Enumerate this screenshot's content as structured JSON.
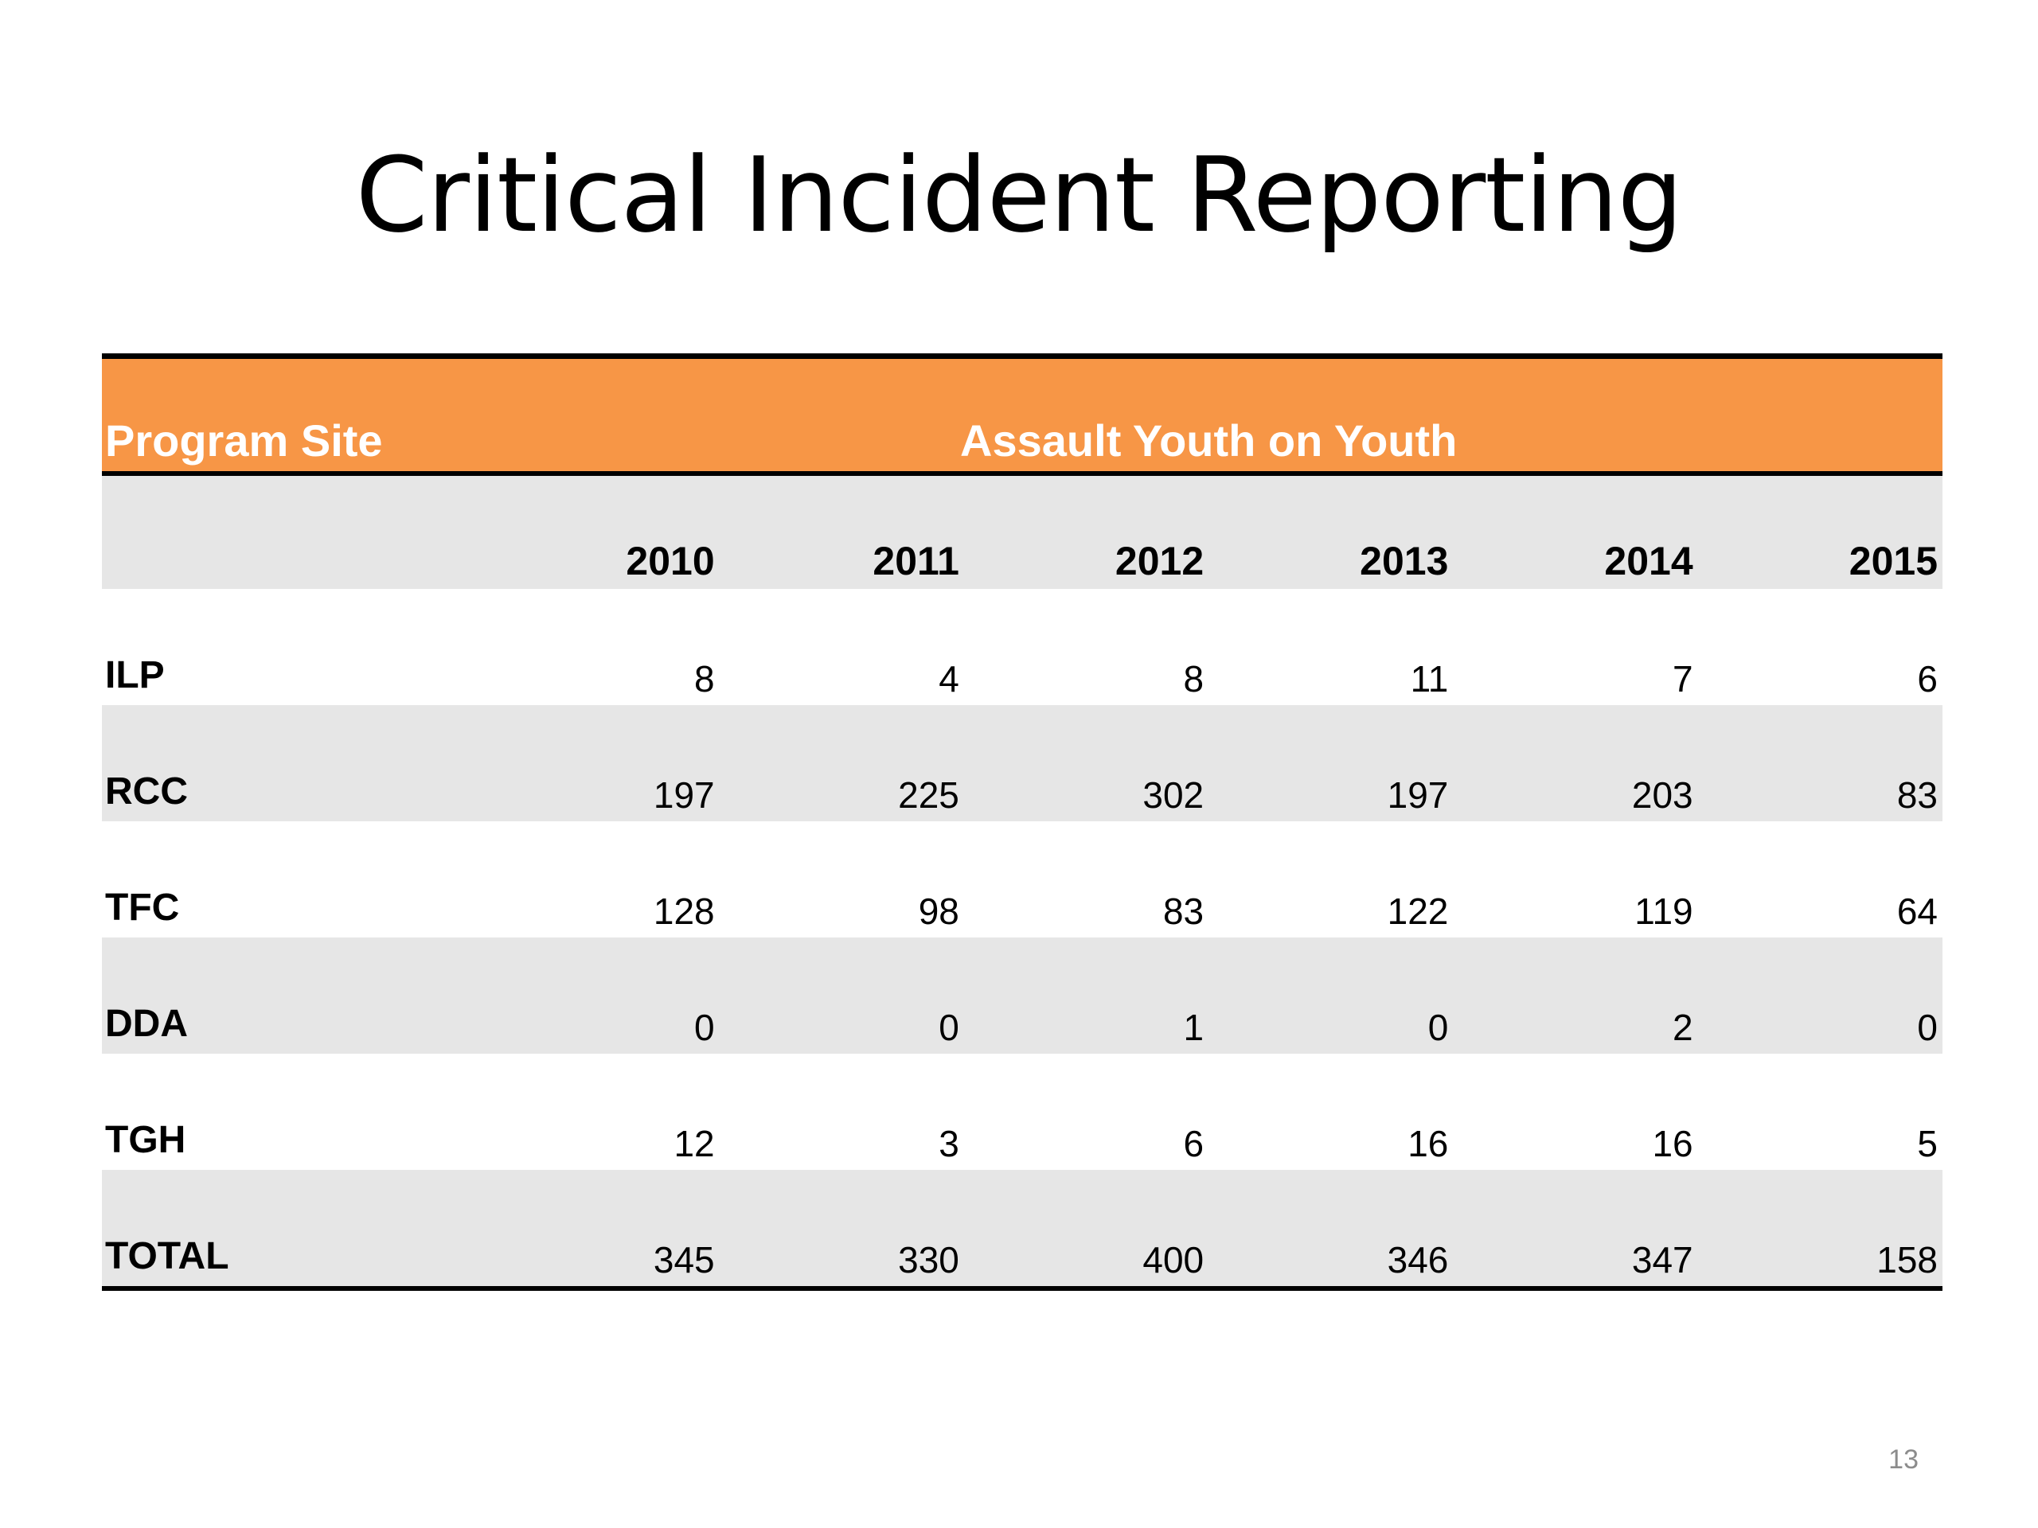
{
  "slide": {
    "title": "Critical Incident Reporting",
    "page_number": "13"
  },
  "table": {
    "site_header": "Program Site",
    "group_header": "Assault Youth on Youth",
    "years": [
      "2010",
      "2011",
      "2012",
      "2013",
      "2014",
      "2015"
    ],
    "rows": [
      {
        "site": "ILP",
        "values": [
          "8",
          "4",
          "8",
          "11",
          "7",
          "6"
        ]
      },
      {
        "site": "RCC",
        "values": [
          "197",
          "225",
          "302",
          "197",
          "203",
          "83"
        ]
      },
      {
        "site": "TFC",
        "values": [
          "128",
          "98",
          "83",
          "122",
          "119",
          "64"
        ]
      },
      {
        "site": "DDA",
        "values": [
          "0",
          "0",
          "1",
          "0",
          "2",
          "0"
        ]
      },
      {
        "site": "TGH",
        "values": [
          "12",
          "3",
          "6",
          "16",
          "16",
          "5"
        ]
      },
      {
        "site": "TOTAL",
        "values": [
          "345",
          "330",
          "400",
          "346",
          "347",
          "158"
        ]
      }
    ]
  },
  "colors": {
    "header_fill": "#f79646",
    "header_text": "#ffffff",
    "band_fill": "#e6e6e6",
    "rule": "#000000"
  }
}
